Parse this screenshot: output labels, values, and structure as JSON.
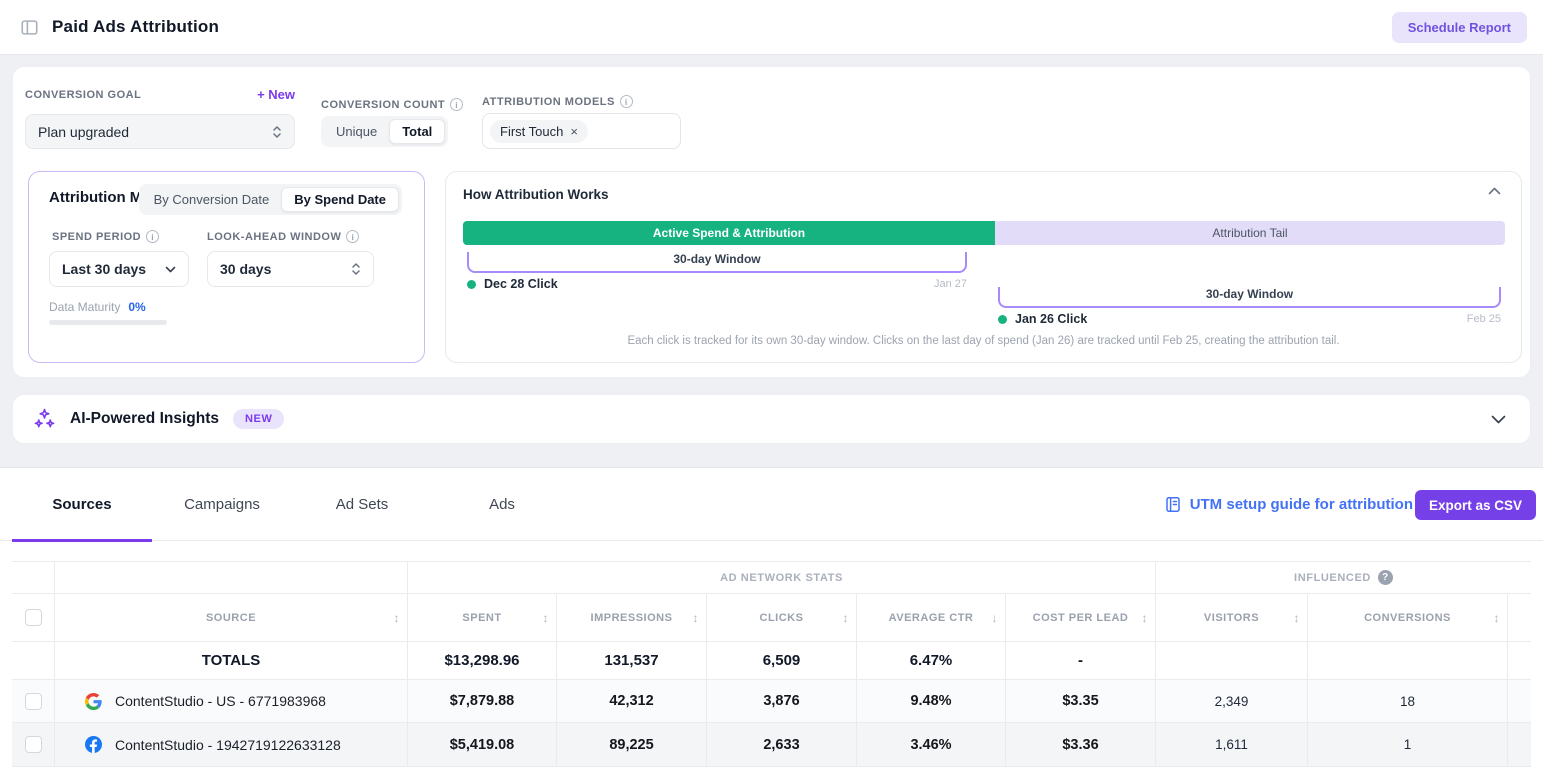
{
  "header": {
    "title": "Paid Ads Attribution",
    "schedule_report_label": "Schedule Report"
  },
  "filters": {
    "conversion_goal": {
      "label": "CONVERSION GOAL",
      "new_link": "+ New",
      "value": "Plan upgraded"
    },
    "conversion_count": {
      "label": "CONVERSION COUNT",
      "unique": "Unique",
      "total": "Total",
      "selected": "Total"
    },
    "attribution_models": {
      "label": "ATTRIBUTION MODELS",
      "chip": "First Touch",
      "chip_remove": "×"
    }
  },
  "attribution_mode": {
    "title": "Attribution Mode",
    "by_conversion_date": "By Conversion Date",
    "by_spend_date": "By Spend Date",
    "selected": "By Spend Date",
    "spend_period_label": "SPEND PERIOD",
    "spend_period_value": "Last 30 days",
    "look_ahead_label": "LOOK-AHEAD WINDOW",
    "look_ahead_value": "30 days",
    "data_maturity_label": "Data Maturity",
    "data_maturity_value": "0%",
    "data_maturity_percent": 0
  },
  "how_it_works": {
    "title": "How Attribution Works",
    "active_bar_label": "Active Spend & Attribution",
    "tail_bar_label": "Attribution Tail",
    "window1": {
      "label": "30-day Window",
      "click": "Dec 28 Click",
      "end_date": "Jan 27"
    },
    "window2": {
      "label": "30-day Window",
      "click": "Jan 26 Click",
      "end_date": "Feb 25"
    },
    "note": "Each click is tracked for its own 30-day window. Clicks on the last day of spend (Jan 26) are tracked until Feb 25, creating the attribution tail."
  },
  "insights": {
    "title": "AI-Powered Insights",
    "badge": "NEW"
  },
  "sources_section": {
    "tabs": [
      {
        "label": "Sources"
      },
      {
        "label": "Campaigns"
      },
      {
        "label": "Ad Sets"
      },
      {
        "label": "Ads"
      }
    ],
    "active_tab": "Sources",
    "utm_link": "UTM setup guide for attribution",
    "export_button": "Export as CSV"
  },
  "table": {
    "group_headers": {
      "network": "AD NETWORK STATS",
      "influenced": "INFLUENCED"
    },
    "columns": [
      {
        "label": "SOURCE",
        "sort_icon": "↕"
      },
      {
        "label": "SPENT",
        "sort_icon": "↕"
      },
      {
        "label": "IMPRESSIONS",
        "sort_icon": "↕"
      },
      {
        "label": "CLICKS",
        "sort_icon": "↕"
      },
      {
        "label": "AVERAGE CTR",
        "sort_icon": "↓"
      },
      {
        "label": "COST PER LEAD",
        "sort_icon": "↕"
      },
      {
        "label": "VISITORS",
        "sort_icon": "↕"
      },
      {
        "label": "CONVERSIONS",
        "sort_icon": "↕"
      }
    ],
    "totals": {
      "label": "TOTALS",
      "spent": "$13,298.96",
      "impressions": "131,537",
      "clicks": "6,509",
      "average_ctr": "6.47%",
      "cost_per_lead": "-",
      "visitors": "",
      "conversions": ""
    },
    "rows": [
      {
        "network": "google",
        "source": "ContentStudio - US - 6771983968",
        "spent": "$7,879.88",
        "impressions": "42,312",
        "clicks": "3,876",
        "average_ctr": "9.48%",
        "cost_per_lead": "$3.35",
        "visitors": "2,349",
        "conversions": "18"
      },
      {
        "network": "facebook",
        "source": "ContentStudio - 1942719122633128",
        "spent": "$5,419.08",
        "impressions": "89,225",
        "clicks": "2,633",
        "average_ctr": "3.46%",
        "cost_per_lead": "$3.36",
        "visitors": "1,611",
        "conversions": "1"
      }
    ]
  },
  "colors": {
    "accent_purple": "#7c3aed",
    "light_purple_bg": "#e9e4fb",
    "bracket_purple": "#a78bfa",
    "active_green": "#16b380",
    "tail_purple": "#e3dcf9",
    "link_blue": "#4472f5",
    "maturity_blue": "#2563eb"
  }
}
